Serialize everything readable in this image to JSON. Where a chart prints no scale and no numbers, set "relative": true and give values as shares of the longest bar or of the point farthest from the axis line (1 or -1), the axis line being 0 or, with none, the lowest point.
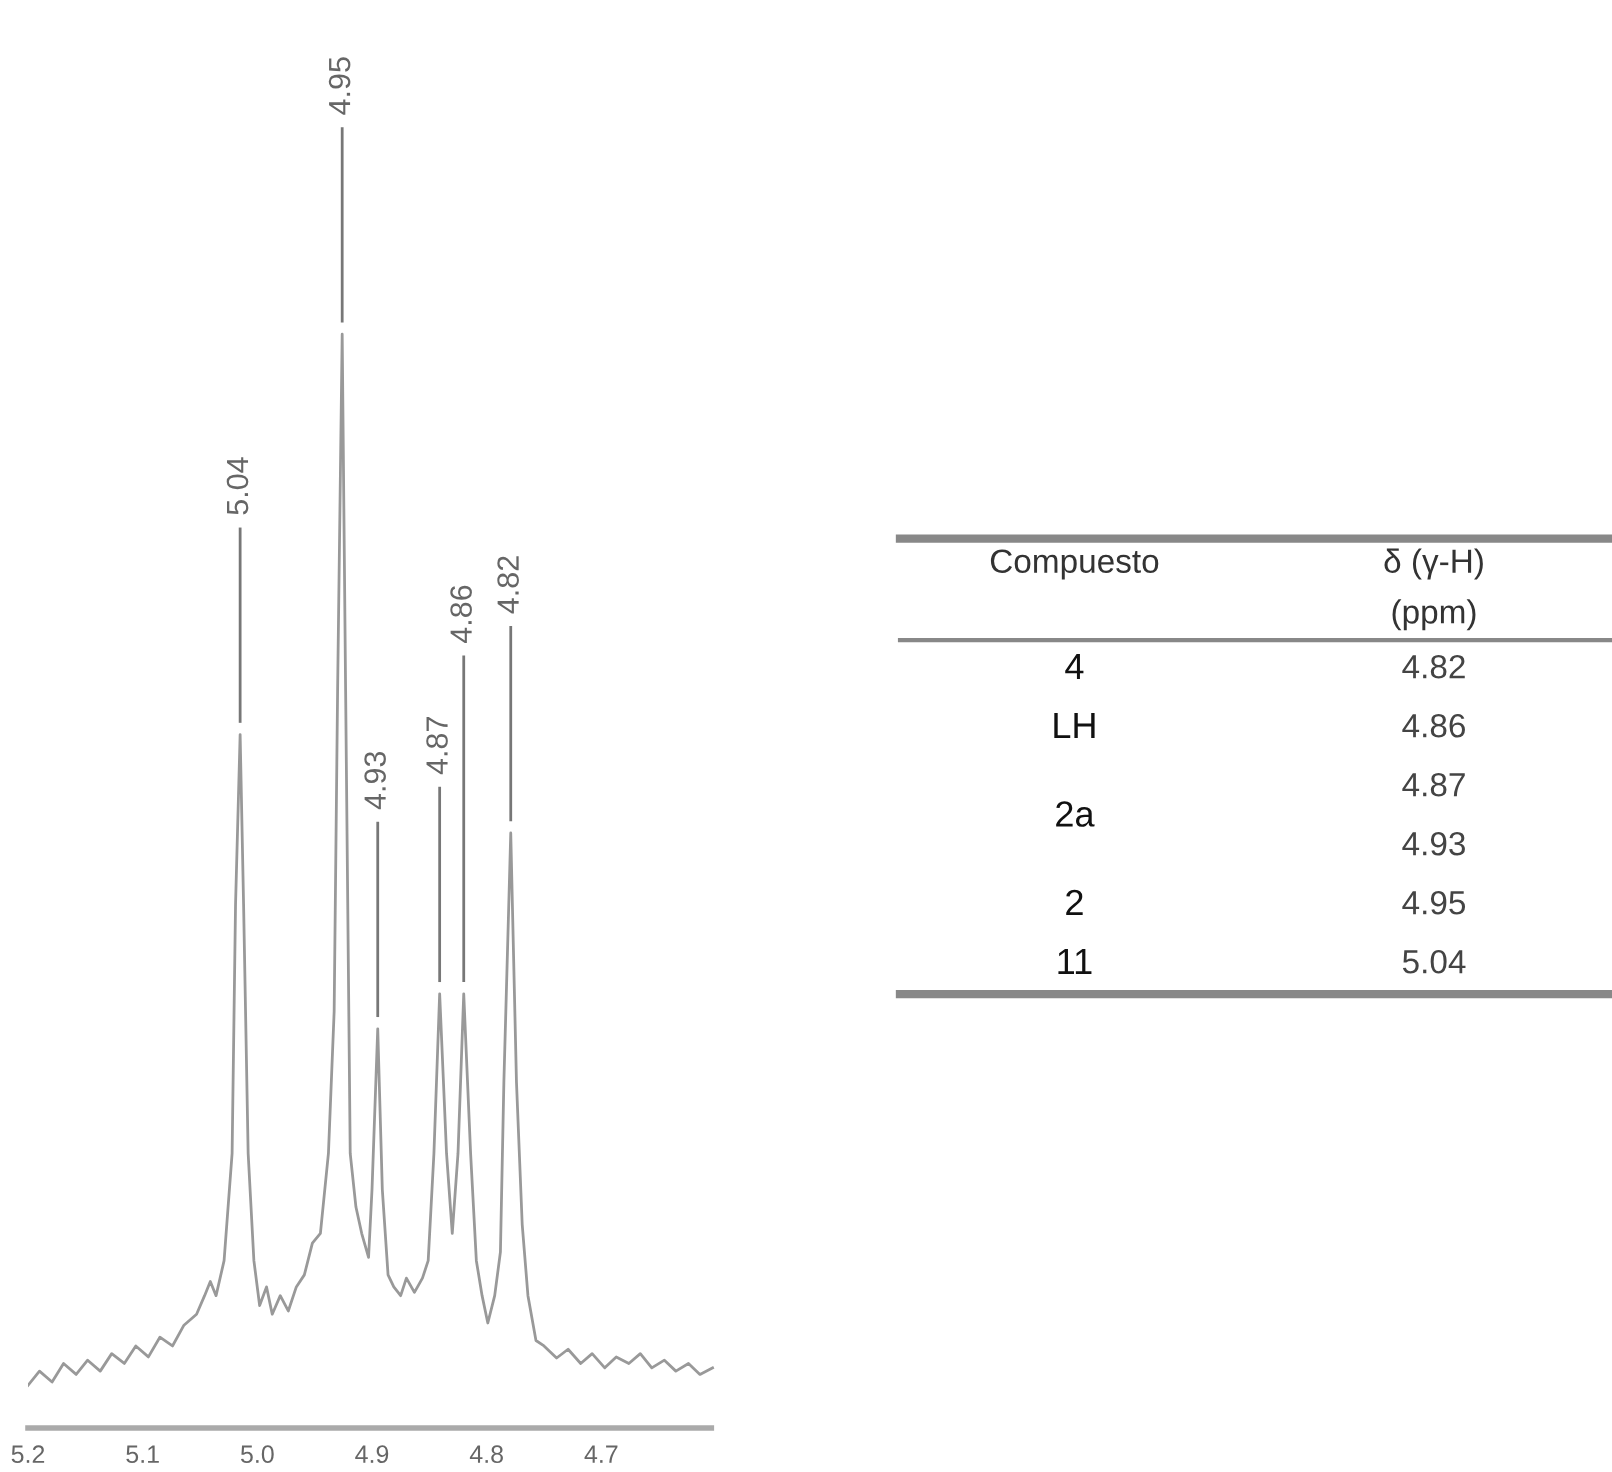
{
  "chart_data": [
    {
      "type": "line",
      "relative": true,
      "xlim": [
        5.2,
        4.6
      ],
      "xticks": [
        5.2,
        5.1,
        {
          "value": 5.0,
          "label": "5.0"
        },
        4.9,
        4.8,
        4.7
      ],
      "x": [
        5.2,
        5.19,
        5.179,
        5.169,
        5.158,
        5.148,
        5.137,
        5.127,
        5.116,
        5.106,
        5.095,
        5.085,
        5.074,
        5.064,
        5.053,
        5.046,
        5.041,
        5.036,
        5.029,
        5.022,
        5.019,
        5.015,
        5.012,
        5.008,
        5.003,
        4.998,
        4.992,
        4.987,
        4.98,
        4.973,
        4.966,
        4.959,
        4.952,
        4.945,
        4.938,
        4.933,
        4.93,
        4.926,
        4.923,
        4.919,
        4.914,
        4.909,
        4.903,
        4.9,
        4.895,
        4.891,
        4.886,
        4.881,
        4.875,
        4.87,
        4.863,
        4.856,
        4.851,
        4.846,
        4.841,
        4.835,
        4.83,
        4.825,
        4.82,
        4.814,
        4.809,
        4.804,
        4.799,
        4.793,
        4.788,
        4.785,
        4.779,
        4.774,
        4.769,
        4.764,
        4.757,
        4.75,
        4.739,
        4.729,
        4.718,
        4.708,
        4.697,
        4.687,
        4.676,
        4.666,
        4.656,
        4.645,
        4.635,
        4.624,
        4.614,
        4.603
      ],
      "series": [
        {
          "color": "#999999",
          "values": [
            0.039,
            0.052,
            0.042,
            0.059,
            0.049,
            0.062,
            0.052,
            0.068,
            0.059,
            0.075,
            0.065,
            0.083,
            0.075,
            0.094,
            0.104,
            0.121,
            0.134,
            0.121,
            0.153,
            0.251,
            0.479,
            0.634,
            0.479,
            0.251,
            0.153,
            0.112,
            0.129,
            0.104,
            0.121,
            0.107,
            0.129,
            0.14,
            0.169,
            0.178,
            0.251,
            0.381,
            0.674,
            1.0,
            0.674,
            0.251,
            0.202,
            0.178,
            0.156,
            0.218,
            0.365,
            0.218,
            0.14,
            0.129,
            0.121,
            0.137,
            0.124,
            0.137,
            0.153,
            0.251,
            0.397,
            0.251,
            0.178,
            0.251,
            0.397,
            0.251,
            0.153,
            0.121,
            0.096,
            0.121,
            0.161,
            0.316,
            0.544,
            0.316,
            0.186,
            0.121,
            0.08,
            0.075,
            0.064,
            0.072,
            0.059,
            0.068,
            0.055,
            0.065,
            0.059,
            0.068,
            0.055,
            0.062,
            0.052,
            0.059,
            0.049,
            0.055
          ]
        }
      ],
      "annotations": [
        {
          "text": "5.04",
          "x": 5.015,
          "y": 0.634
        },
        {
          "text": "4.95",
          "x": 4.926,
          "y": 1.0
        },
        {
          "text": "4.93",
          "x": 4.895,
          "y": 0.365
        },
        {
          "text": "4.87",
          "x": 4.841,
          "y": 0.397
        },
        {
          "text": "4.86",
          "x": 4.82,
          "y": 0.397
        },
        {
          "text": "4.82",
          "x": 4.779,
          "y": 0.544
        }
      ]
    },
    {
      "type": "other",
      "annotations": [
        "Compuesto",
        "δ (γ-H)\n(ppm)",
        "4",
        "4.82",
        "LH",
        "4.86",
        "2a",
        "4.87\n4.93",
        "2",
        "4.95",
        "11",
        "5.04"
      ]
    }
  ]
}
